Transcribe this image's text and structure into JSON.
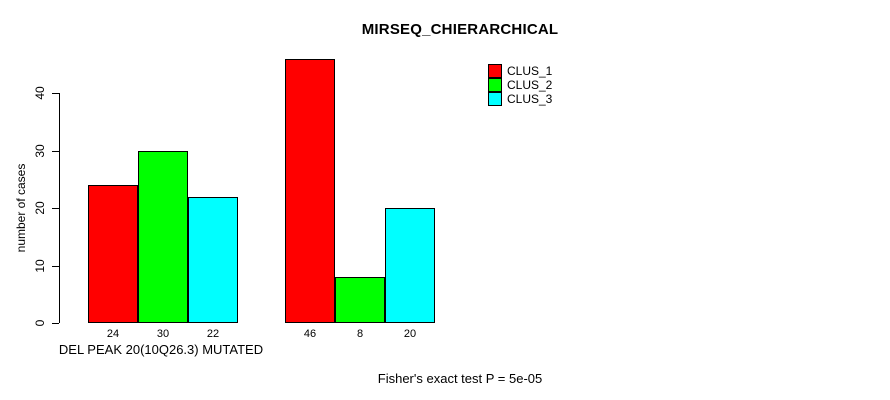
{
  "chart_data": {
    "type": "bar",
    "title": "MIRSEQ_CHIERARCHICAL",
    "ylabel": "number of cases",
    "xlabel": "DEL PEAK 20(10Q26.3) MUTATED",
    "footer": "Fisher's exact test P = 5e-05",
    "ylim": [
      0,
      46
    ],
    "yticks": [
      0,
      10,
      20,
      30,
      40
    ],
    "grid": false,
    "legend_position": "inside-top-right",
    "group_labels": [
      "DEL PEAK 20(10Q26.3) MUTATED",
      ""
    ],
    "series": [
      {
        "name": "CLUS_1",
        "color": "#FF0000",
        "values": [
          24,
          46
        ]
      },
      {
        "name": "CLUS_2",
        "color": "#00FF00",
        "values": [
          30,
          8
        ]
      },
      {
        "name": "CLUS_3",
        "color": "#00FFFF",
        "values": [
          22,
          20
        ]
      }
    ],
    "bar_value_labels": [
      [
        24,
        30,
        22
      ],
      [
        46,
        8,
        20
      ]
    ]
  }
}
